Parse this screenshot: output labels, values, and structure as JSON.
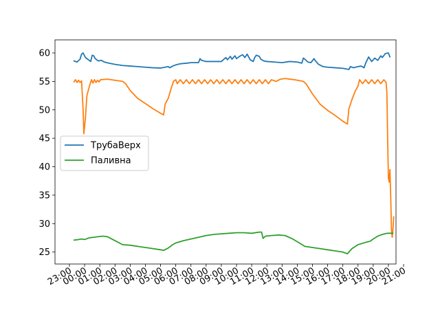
{
  "chart_data": {
    "type": "line",
    "title": "",
    "xlabel": "",
    "ylabel": "",
    "xlim": [
      -0.95,
      21.5
    ],
    "ylim": [
      22.9,
      62.3
    ],
    "grid": false,
    "legend_placement": "center-left",
    "x_ticks": [
      "23:00",
      "00:00",
      "01:00",
      "02:00",
      "03:00",
      "04:00",
      "05:00",
      "06:00",
      "07:00",
      "08:00",
      "09:00",
      "10:00",
      "11:00",
      "12:00",
      "13:00",
      "14:00",
      "15:00",
      "16:00",
      "17:00",
      "18:00",
      "19:00",
      "20:00",
      "21:00"
    ],
    "y_ticks": [
      25,
      30,
      35,
      40,
      45,
      50,
      55,
      60
    ],
    "x_unit_note": "x values are hours, starting at 23:00 as 0",
    "series": [
      {
        "name": "ТрубаВерх",
        "color": "#1f77b4",
        "in_legend": true,
        "points": [
          [
            0.3,
            58.6
          ],
          [
            0.5,
            58.4
          ],
          [
            0.7,
            58.9
          ],
          [
            0.8,
            59.8
          ],
          [
            0.9,
            60.0
          ],
          [
            1.05,
            59.2
          ],
          [
            1.2,
            58.9
          ],
          [
            1.4,
            58.5
          ],
          [
            1.5,
            59.6
          ],
          [
            1.6,
            59.5
          ],
          [
            1.7,
            59.0
          ],
          [
            1.9,
            58.6
          ],
          [
            2.1,
            58.7
          ],
          [
            2.3,
            58.4
          ],
          [
            2.6,
            58.2
          ],
          [
            3.0,
            58.0
          ],
          [
            3.5,
            57.8
          ],
          [
            4.0,
            57.7
          ],
          [
            4.5,
            57.6
          ],
          [
            5.0,
            57.5
          ],
          [
            5.5,
            57.4
          ],
          [
            6.0,
            57.35
          ],
          [
            6.5,
            57.6
          ],
          [
            6.6,
            57.4
          ],
          [
            6.8,
            57.7
          ],
          [
            7.0,
            57.9
          ],
          [
            7.3,
            58.1
          ],
          [
            7.7,
            58.2
          ],
          [
            8.0,
            58.3
          ],
          [
            8.5,
            58.3
          ],
          [
            8.6,
            59.0
          ],
          [
            8.7,
            58.7
          ],
          [
            9.0,
            58.5
          ],
          [
            9.5,
            58.5
          ],
          [
            10.0,
            58.5
          ],
          [
            10.3,
            59.2
          ],
          [
            10.4,
            58.8
          ],
          [
            10.6,
            59.4
          ],
          [
            10.7,
            58.9
          ],
          [
            10.9,
            59.5
          ],
          [
            11.0,
            59.0
          ],
          [
            11.2,
            59.4
          ],
          [
            11.4,
            59.7
          ],
          [
            11.55,
            59.2
          ],
          [
            11.7,
            59.8
          ],
          [
            11.9,
            58.8
          ],
          [
            12.1,
            58.5
          ],
          [
            12.2,
            59.2
          ],
          [
            12.3,
            59.6
          ],
          [
            12.5,
            59.4
          ],
          [
            12.6,
            58.9
          ],
          [
            12.8,
            58.6
          ],
          [
            13.0,
            58.5
          ],
          [
            13.5,
            58.4
          ],
          [
            14.0,
            58.3
          ],
          [
            14.5,
            58.5
          ],
          [
            15.0,
            58.4
          ],
          [
            15.3,
            58.2
          ],
          [
            15.4,
            59.1
          ],
          [
            15.5,
            58.9
          ],
          [
            15.7,
            58.4
          ],
          [
            15.9,
            58.3
          ],
          [
            16.1,
            59.0
          ],
          [
            16.2,
            58.6
          ],
          [
            16.4,
            58.0
          ],
          [
            16.7,
            57.6
          ],
          [
            17.0,
            57.5
          ],
          [
            17.5,
            57.4
          ],
          [
            18.0,
            57.3
          ],
          [
            18.4,
            57.1
          ],
          [
            18.5,
            57.6
          ],
          [
            18.7,
            57.4
          ],
          [
            19.0,
            57.6
          ],
          [
            19.2,
            57.7
          ],
          [
            19.4,
            57.4
          ],
          [
            19.5,
            58.2
          ],
          [
            19.7,
            59.3
          ],
          [
            19.9,
            58.5
          ],
          [
            20.1,
            59.1
          ],
          [
            20.3,
            58.7
          ],
          [
            20.5,
            59.5
          ],
          [
            20.6,
            59.2
          ],
          [
            20.8,
            59.9
          ],
          [
            21.0,
            60.0
          ],
          [
            21.1,
            59.3
          ]
        ]
      },
      {
        "name": "",
        "color": "#ff7f0e",
        "in_legend": false,
        "points": [
          [
            0.3,
            54.9
          ],
          [
            0.4,
            55.3
          ],
          [
            0.5,
            54.8
          ],
          [
            0.6,
            55.2
          ],
          [
            0.7,
            54.8
          ],
          [
            0.8,
            55.1
          ],
          [
            0.9,
            50.0
          ],
          [
            0.95,
            45.8
          ],
          [
            1.05,
            48.5
          ],
          [
            1.15,
            52.5
          ],
          [
            1.3,
            54.0
          ],
          [
            1.45,
            55.3
          ],
          [
            1.55,
            54.7
          ],
          [
            1.65,
            55.3
          ],
          [
            1.75,
            54.8
          ],
          [
            1.85,
            55.2
          ],
          [
            1.95,
            54.9
          ],
          [
            2.05,
            55.3
          ],
          [
            2.5,
            55.4
          ],
          [
            3.0,
            55.2
          ],
          [
            3.5,
            55.0
          ],
          [
            3.7,
            54.6
          ],
          [
            4.0,
            53.4
          ],
          [
            4.5,
            52.0
          ],
          [
            5.0,
            51.1
          ],
          [
            5.5,
            50.2
          ],
          [
            6.0,
            49.4
          ],
          [
            6.2,
            49.1
          ],
          [
            6.3,
            51.0
          ],
          [
            6.5,
            52.0
          ],
          [
            6.7,
            53.8
          ],
          [
            6.85,
            55.0
          ],
          [
            7.0,
            55.3
          ],
          [
            7.1,
            54.6
          ],
          [
            7.3,
            55.3
          ],
          [
            7.5,
            54.6
          ],
          [
            7.7,
            55.3
          ],
          [
            7.9,
            54.6
          ],
          [
            8.1,
            55.3
          ],
          [
            8.3,
            54.6
          ],
          [
            8.5,
            55.3
          ],
          [
            8.7,
            54.6
          ],
          [
            8.9,
            55.3
          ],
          [
            9.1,
            54.6
          ],
          [
            9.3,
            55.3
          ],
          [
            9.5,
            54.6
          ],
          [
            9.7,
            55.3
          ],
          [
            9.9,
            54.6
          ],
          [
            10.1,
            55.3
          ],
          [
            10.3,
            54.6
          ],
          [
            10.5,
            55.3
          ],
          [
            10.7,
            54.6
          ],
          [
            10.9,
            55.3
          ],
          [
            11.1,
            54.6
          ],
          [
            11.3,
            55.3
          ],
          [
            11.5,
            54.6
          ],
          [
            11.7,
            55.3
          ],
          [
            11.9,
            54.6
          ],
          [
            12.1,
            55.3
          ],
          [
            12.3,
            54.6
          ],
          [
            12.5,
            55.3
          ],
          [
            12.7,
            54.6
          ],
          [
            12.9,
            55.3
          ],
          [
            13.1,
            54.6
          ],
          [
            13.3,
            55.3
          ],
          [
            13.6,
            55.0
          ],
          [
            13.9,
            55.4
          ],
          [
            14.2,
            55.5
          ],
          [
            14.8,
            55.3
          ],
          [
            15.4,
            55.0
          ],
          [
            15.6,
            54.5
          ],
          [
            16.0,
            52.8
          ],
          [
            16.5,
            51.0
          ],
          [
            17.0,
            49.9
          ],
          [
            17.5,
            49.0
          ],
          [
            18.0,
            48.0
          ],
          [
            18.3,
            47.5
          ],
          [
            18.4,
            50.2
          ],
          [
            18.6,
            51.8
          ],
          [
            18.8,
            53.2
          ],
          [
            19.0,
            54.2
          ],
          [
            19.1,
            55.3
          ],
          [
            19.3,
            54.6
          ],
          [
            19.5,
            55.3
          ],
          [
            19.7,
            54.6
          ],
          [
            19.9,
            55.3
          ],
          [
            20.1,
            54.6
          ],
          [
            20.3,
            55.3
          ],
          [
            20.5,
            54.6
          ],
          [
            20.7,
            55.3
          ],
          [
            20.85,
            54.8
          ],
          [
            20.9,
            53.0
          ],
          [
            20.95,
            45.0
          ],
          [
            21.0,
            38.0
          ],
          [
            21.05,
            37.3
          ],
          [
            21.1,
            39.5
          ],
          [
            21.15,
            35.0
          ],
          [
            21.2,
            29.0
          ],
          [
            21.25,
            27.6
          ],
          [
            21.3,
            29.0
          ],
          [
            21.35,
            31.2
          ]
        ]
      },
      {
        "name": "Паливна",
        "color": "#2ca02c",
        "in_legend": true,
        "points": [
          [
            0.3,
            27.1
          ],
          [
            0.6,
            27.2
          ],
          [
            0.8,
            27.3
          ],
          [
            1.0,
            27.2
          ],
          [
            1.3,
            27.5
          ],
          [
            1.6,
            27.6
          ],
          [
            1.9,
            27.7
          ],
          [
            2.2,
            27.8
          ],
          [
            2.5,
            27.7
          ],
          [
            3.0,
            27.0
          ],
          [
            3.5,
            26.3
          ],
          [
            4.0,
            26.2
          ],
          [
            4.5,
            26.0
          ],
          [
            5.0,
            25.8
          ],
          [
            5.5,
            25.6
          ],
          [
            6.0,
            25.4
          ],
          [
            6.2,
            25.3
          ],
          [
            6.5,
            25.7
          ],
          [
            6.8,
            26.3
          ],
          [
            7.0,
            26.6
          ],
          [
            7.5,
            27.0
          ],
          [
            8.0,
            27.3
          ],
          [
            8.5,
            27.6
          ],
          [
            9.0,
            27.9
          ],
          [
            9.5,
            28.1
          ],
          [
            10.0,
            28.2
          ],
          [
            10.5,
            28.3
          ],
          [
            11.0,
            28.4
          ],
          [
            11.5,
            28.4
          ],
          [
            12.0,
            28.3
          ],
          [
            12.5,
            28.5
          ],
          [
            12.65,
            28.5
          ],
          [
            12.75,
            27.4
          ],
          [
            12.9,
            27.8
          ],
          [
            13.3,
            27.9
          ],
          [
            13.8,
            28.0
          ],
          [
            14.2,
            27.9
          ],
          [
            14.7,
            27.3
          ],
          [
            15.2,
            26.5
          ],
          [
            15.5,
            26.0
          ],
          [
            16.0,
            25.8
          ],
          [
            16.5,
            25.6
          ],
          [
            17.0,
            25.4
          ],
          [
            17.5,
            25.2
          ],
          [
            18.0,
            25.0
          ],
          [
            18.3,
            24.7
          ],
          [
            18.6,
            25.6
          ],
          [
            19.0,
            26.3
          ],
          [
            19.5,
            26.7
          ],
          [
            19.8,
            26.9
          ],
          [
            20.0,
            27.3
          ],
          [
            20.3,
            27.8
          ],
          [
            20.6,
            28.1
          ],
          [
            20.9,
            28.3
          ],
          [
            21.1,
            28.3
          ],
          [
            21.3,
            28.3
          ]
        ]
      }
    ]
  }
}
